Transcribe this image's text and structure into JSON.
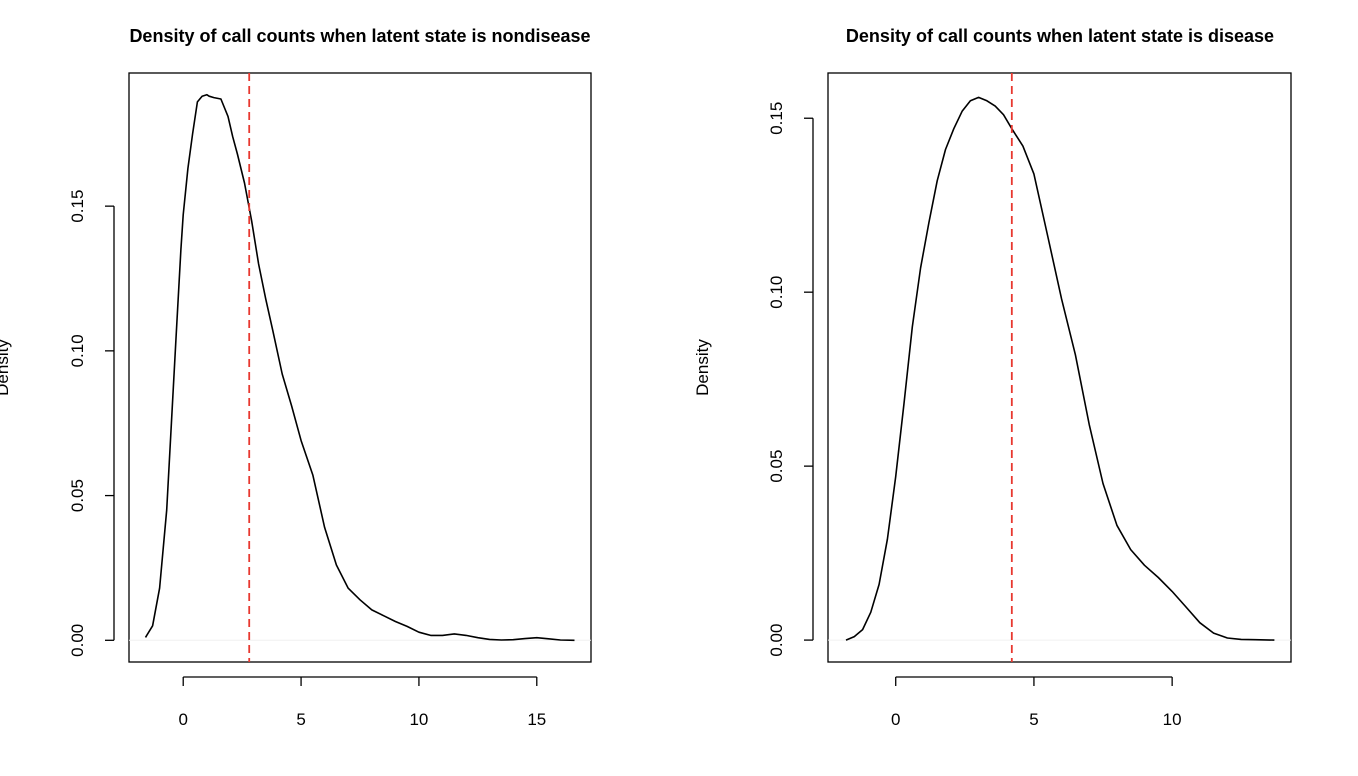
{
  "chart_data": [
    {
      "type": "line",
      "title": "Density of call counts when latent state is nondisease",
      "xlabel": "",
      "ylabel": "Density",
      "xlim": [
        -2.3,
        17.3
      ],
      "ylim": [
        -0.0075,
        0.196
      ],
      "x_ticks": [
        0,
        5,
        10,
        15
      ],
      "x_tick_labels": [
        "0",
        "5",
        "10",
        "15"
      ],
      "y_ticks": [
        0,
        0.05,
        0.1,
        0.15
      ],
      "y_tick_labels": [
        "0.00",
        "0.05",
        "0.10",
        "0.15"
      ],
      "grid": false,
      "baseline": 0,
      "series": [
        {
          "color": "#000000",
          "style": "solid",
          "x": [
            -1.6,
            -1.3,
            -1.0,
            -0.7,
            -0.5,
            -0.3,
            -0.1,
            0.0,
            0.2,
            0.4,
            0.6,
            0.8,
            1.0,
            1.1,
            1.3,
            1.6,
            1.9,
            2.1,
            2.3,
            2.6,
            2.9,
            3.2,
            3.5,
            3.8,
            4.2,
            4.6,
            5.0,
            5.5,
            6.0,
            6.5,
            7.0,
            7.5,
            8.0,
            8.5,
            9.0,
            9.5,
            10.0,
            10.5,
            11.0,
            11.5,
            12.0,
            12.5,
            13.0,
            13.5,
            14.0,
            14.5,
            15.0,
            15.5,
            16.0,
            16.6
          ],
          "y": [
            0.001,
            0.005,
            0.018,
            0.045,
            0.075,
            0.105,
            0.135,
            0.147,
            0.163,
            0.175,
            0.186,
            0.188,
            0.1885,
            0.188,
            0.1875,
            0.187,
            0.181,
            0.174,
            0.168,
            0.158,
            0.145,
            0.13,
            0.118,
            0.107,
            0.092,
            0.081,
            0.069,
            0.057,
            0.039,
            0.026,
            0.018,
            0.014,
            0.0105,
            0.0085,
            0.0065,
            0.0048,
            0.0028,
            0.0017,
            0.0017,
            0.0022,
            0.0017,
            0.0009,
            0.0003,
            0.0001,
            0.0002,
            0.0006,
            0.0009,
            0.0005,
            0.0001,
            0.0
          ]
        }
      ],
      "vline": {
        "x": 2.8,
        "color": "#e8382f",
        "style": "dashed"
      }
    },
    {
      "type": "line",
      "title": "Density of call counts when latent state is disease",
      "xlabel": "",
      "ylabel": "Density",
      "xlim": [
        -2.45,
        14.3
      ],
      "ylim": [
        -0.0063,
        0.163
      ],
      "x_ticks": [
        0,
        5,
        10
      ],
      "x_tick_labels": [
        "0",
        "5",
        "10"
      ],
      "y_ticks": [
        0,
        0.05,
        0.1,
        0.15
      ],
      "y_tick_labels": [
        "0.00",
        "0.05",
        "0.10",
        "0.15"
      ],
      "grid": false,
      "baseline": 0,
      "series": [
        {
          "color": "#000000",
          "style": "solid",
          "x": [
            -1.8,
            -1.5,
            -1.2,
            -0.9,
            -0.6,
            -0.3,
            0.0,
            0.3,
            0.6,
            0.9,
            1.2,
            1.5,
            1.8,
            2.1,
            2.4,
            2.7,
            3.0,
            3.3,
            3.6,
            3.9,
            4.2,
            4.6,
            5.0,
            5.5,
            6.0,
            6.5,
            7.0,
            7.5,
            8.0,
            8.5,
            9.0,
            9.5,
            10.0,
            10.5,
            11.0,
            11.5,
            12.0,
            12.5,
            13.0,
            13.7
          ],
          "y": [
            0.0,
            0.001,
            0.003,
            0.008,
            0.016,
            0.029,
            0.047,
            0.068,
            0.09,
            0.107,
            0.12,
            0.132,
            0.141,
            0.147,
            0.152,
            0.155,
            0.156,
            0.155,
            0.1535,
            0.151,
            0.147,
            0.142,
            0.134,
            0.116,
            0.098,
            0.082,
            0.062,
            0.045,
            0.033,
            0.026,
            0.0215,
            0.018,
            0.014,
            0.0095,
            0.005,
            0.002,
            0.0006,
            0.0002,
            0.0001,
            0.0
          ]
        }
      ],
      "vline": {
        "x": 4.2,
        "color": "#e8382f",
        "style": "dashed"
      }
    }
  ]
}
